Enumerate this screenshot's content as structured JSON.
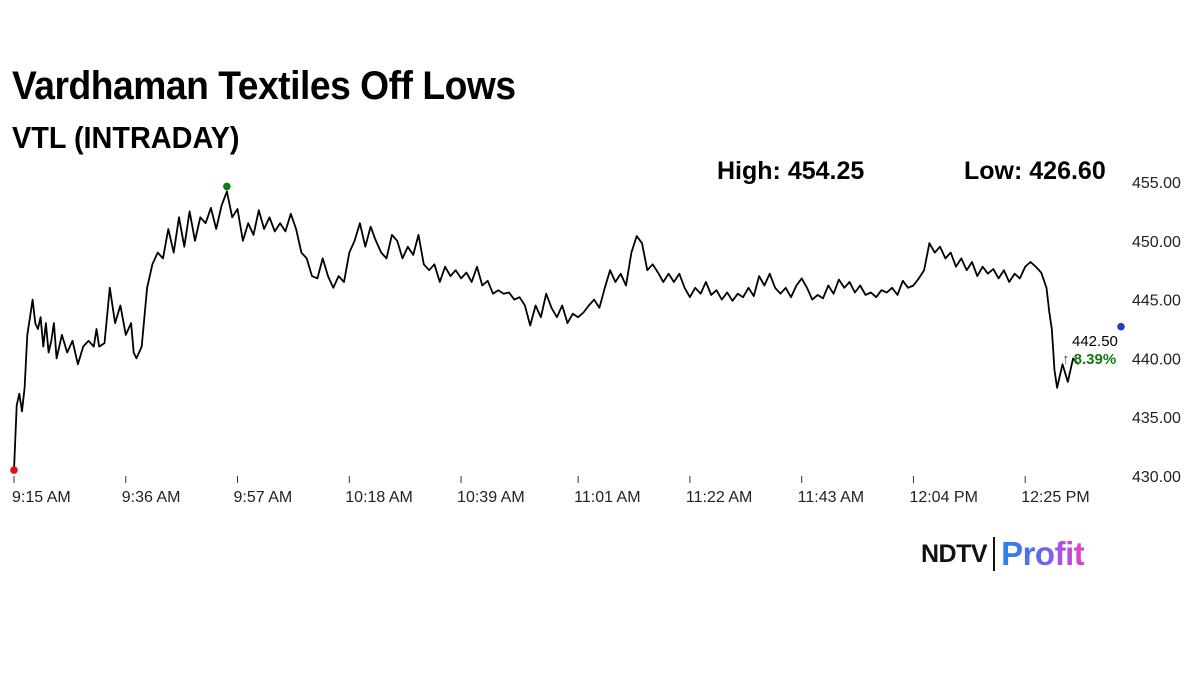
{
  "header": {
    "title": "Vardhaman Textiles Off Lows",
    "subtitle": "VTL (INTRADAY)"
  },
  "stats": {
    "high_label": "High: 454.25",
    "low_label": "Low: 426.60"
  },
  "logo": {
    "brand": "NDTV",
    "product": "Profit"
  },
  "colors": {
    "line": "#000000",
    "low_marker": "#e01010",
    "high_marker": "#117a11",
    "last_marker": "#1f3fbf",
    "change_up": "#117a11"
  },
  "chart_data": {
    "type": "line",
    "title": "Vardhaman Textiles Off Lows",
    "subtitle": "VTL (INTRADAY)",
    "x_tick_labels": [
      "9:15 AM",
      "9:36 AM",
      "9:57 AM",
      "10:18 AM",
      "10:39 AM",
      "11:01 AM",
      "11:22 AM",
      "11:43 AM",
      "12:04 PM",
      "12:25 PM"
    ],
    "y_tick_labels": [
      "455.00",
      "450.00",
      "445.00",
      "440.00",
      "435.00",
      "430.00"
    ],
    "y_ticks": [
      455,
      450,
      445,
      440,
      435,
      430
    ],
    "ylim": [
      430,
      455
    ],
    "x_range_minutes": [
      0,
      208
    ],
    "x_tick_minutes": [
      0,
      21,
      42,
      63,
      84,
      106,
      127,
      148,
      169,
      190
    ],
    "grid": false,
    "high": 454.25,
    "low": 426.6,
    "last_price": "442.50",
    "change": "8.39%",
    "change_arrow": "↑",
    "series": [
      {
        "points": [
          [
            0,
            430.5
          ],
          [
            0.5,
            436
          ],
          [
            1,
            437
          ],
          [
            1.5,
            435.5
          ],
          [
            2,
            437.5
          ],
          [
            2.5,
            442
          ],
          [
            3,
            443.5
          ],
          [
            3.5,
            445
          ],
          [
            4,
            443
          ],
          [
            4.5,
            442.5
          ],
          [
            5,
            443.5
          ],
          [
            5.5,
            441
          ],
          [
            6,
            443
          ],
          [
            6.5,
            440.5
          ],
          [
            7,
            441.5
          ],
          [
            7.5,
            443
          ],
          [
            8,
            440
          ],
          [
            9,
            442
          ],
          [
            10,
            440.5
          ],
          [
            11,
            441.5
          ],
          [
            12,
            439.5
          ],
          [
            13,
            441
          ],
          [
            14,
            441.5
          ],
          [
            15,
            441
          ],
          [
            15.5,
            442.5
          ],
          [
            16,
            441
          ],
          [
            17,
            441.3
          ],
          [
            18,
            446
          ],
          [
            19,
            443
          ],
          [
            20,
            444.5
          ],
          [
            21,
            442
          ],
          [
            22,
            443
          ],
          [
            22.5,
            440.5
          ],
          [
            23,
            440
          ],
          [
            24,
            441
          ],
          [
            25,
            446
          ],
          [
            26,
            448
          ],
          [
            27,
            449
          ],
          [
            28,
            448.5
          ],
          [
            29,
            451
          ],
          [
            30,
            449
          ],
          [
            31,
            452
          ],
          [
            32,
            449.5
          ],
          [
            33,
            452.5
          ],
          [
            34,
            450
          ],
          [
            35,
            452
          ],
          [
            36,
            451.5
          ],
          [
            37,
            452.8
          ],
          [
            38,
            451
          ],
          [
            39,
            453
          ],
          [
            40,
            454.2
          ],
          [
            41,
            452
          ],
          [
            42,
            452.7
          ],
          [
            43,
            450
          ],
          [
            44,
            451.5
          ],
          [
            45,
            450.5
          ],
          [
            46,
            452.6
          ],
          [
            47,
            451
          ],
          [
            48,
            452
          ],
          [
            49,
            450.8
          ],
          [
            50,
            451.5
          ],
          [
            51,
            450.8
          ],
          [
            52,
            452.3
          ],
          [
            53,
            451
          ],
          [
            54,
            449
          ],
          [
            55,
            448.5
          ],
          [
            56,
            447
          ],
          [
            57,
            446.8
          ],
          [
            58,
            448.5
          ],
          [
            59,
            447
          ],
          [
            60,
            446
          ],
          [
            61,
            447
          ],
          [
            62,
            446.5
          ],
          [
            63,
            449
          ],
          [
            64,
            450
          ],
          [
            65,
            451.5
          ],
          [
            66,
            449.5
          ],
          [
            67,
            451.2
          ],
          [
            68,
            450
          ],
          [
            69,
            449
          ],
          [
            70,
            448.5
          ],
          [
            71,
            450.5
          ],
          [
            72,
            450
          ],
          [
            73,
            448.5
          ],
          [
            74,
            449.5
          ],
          [
            75,
            448.8
          ],
          [
            76,
            450.5
          ],
          [
            77,
            448
          ],
          [
            78,
            447.5
          ],
          [
            79,
            448
          ],
          [
            80,
            446.5
          ],
          [
            81,
            447.8
          ],
          [
            82,
            447
          ],
          [
            83,
            447.5
          ],
          [
            84,
            446.8
          ],
          [
            85,
            447.3
          ],
          [
            86,
            446.5
          ],
          [
            87,
            447.8
          ],
          [
            88,
            446.2
          ],
          [
            89,
            446.6
          ],
          [
            90,
            445.5
          ],
          [
            91,
            445.8
          ],
          [
            92,
            445.5
          ],
          [
            93,
            445.6
          ],
          [
            94,
            445
          ],
          [
            95,
            445.2
          ],
          [
            96,
            444.5
          ],
          [
            97,
            442.8
          ],
          [
            98,
            444.5
          ],
          [
            99,
            443.5
          ],
          [
            100,
            445.5
          ],
          [
            101,
            444.3
          ],
          [
            102,
            443.5
          ],
          [
            103,
            444.5
          ],
          [
            104,
            443
          ],
          [
            105,
            443.8
          ],
          [
            106,
            443.5
          ],
          [
            107,
            443.9
          ],
          [
            108,
            444.5
          ],
          [
            109,
            445
          ],
          [
            110,
            444.3
          ],
          [
            111,
            446
          ],
          [
            112,
            447.5
          ],
          [
            113,
            446.5
          ],
          [
            114,
            447.2
          ],
          [
            115,
            446.2
          ],
          [
            116,
            449
          ],
          [
            117,
            450.4
          ],
          [
            118,
            449.8
          ],
          [
            119,
            447.5
          ],
          [
            120,
            448
          ],
          [
            121,
            447.3
          ],
          [
            122,
            446.5
          ],
          [
            123,
            447.2
          ],
          [
            124,
            446.5
          ],
          [
            125,
            447.2
          ],
          [
            126,
            446
          ],
          [
            127,
            445.2
          ],
          [
            128,
            446
          ],
          [
            129,
            445.5
          ],
          [
            130,
            446.5
          ],
          [
            131,
            445.4
          ],
          [
            132,
            445.8
          ],
          [
            133,
            445
          ],
          [
            134,
            445.6
          ],
          [
            135,
            444.9
          ],
          [
            136,
            445.5
          ],
          [
            137,
            445.2
          ],
          [
            138,
            446
          ],
          [
            139,
            445.3
          ],
          [
            140,
            447
          ],
          [
            141,
            446.2
          ],
          [
            142,
            447.2
          ],
          [
            143,
            446
          ],
          [
            144,
            445.5
          ],
          [
            145,
            446
          ],
          [
            146,
            445.2
          ],
          [
            147,
            446.2
          ],
          [
            148,
            446.8
          ],
          [
            149,
            446
          ],
          [
            150,
            445
          ],
          [
            151,
            445.4
          ],
          [
            152,
            445.1
          ],
          [
            153,
            446.2
          ],
          [
            154,
            445.5
          ],
          [
            155,
            446.7
          ],
          [
            156,
            446
          ],
          [
            157,
            446.5
          ],
          [
            158,
            445.6
          ],
          [
            159,
            446.2
          ],
          [
            160,
            445.4
          ],
          [
            161,
            445.6
          ],
          [
            162,
            445.2
          ],
          [
            163,
            445.8
          ],
          [
            164,
            445.6
          ],
          [
            165,
            446
          ],
          [
            166,
            445.4
          ],
          [
            167,
            446.6
          ],
          [
            168,
            446
          ],
          [
            169,
            446.2
          ],
          [
            170,
            446.8
          ],
          [
            171,
            447.5
          ],
          [
            172,
            449.8
          ],
          [
            173,
            449
          ],
          [
            174,
            449.5
          ],
          [
            175,
            448.5
          ],
          [
            176,
            449
          ],
          [
            177,
            447.8
          ],
          [
            178,
            448.5
          ],
          [
            179,
            447.5
          ],
          [
            180,
            448.2
          ],
          [
            181,
            447
          ],
          [
            182,
            447.8
          ],
          [
            183,
            447.2
          ],
          [
            184,
            447.6
          ],
          [
            185,
            446.8
          ],
          [
            186,
            447.5
          ],
          [
            187,
            446.5
          ],
          [
            188,
            447.2
          ],
          [
            189,
            446.8
          ],
          [
            190,
            447.8
          ],
          [
            191,
            448.2
          ],
          [
            192,
            447.8
          ],
          [
            193,
            447.3
          ],
          [
            194,
            446
          ],
          [
            194.5,
            444
          ],
          [
            195,
            442.5
          ],
          [
            195.5,
            439
          ],
          [
            196,
            437.5
          ],
          [
            197,
            439.5
          ],
          [
            198,
            438
          ],
          [
            199,
            440
          ],
          [
            200,
            439.5
          ]
        ]
      }
    ]
  }
}
